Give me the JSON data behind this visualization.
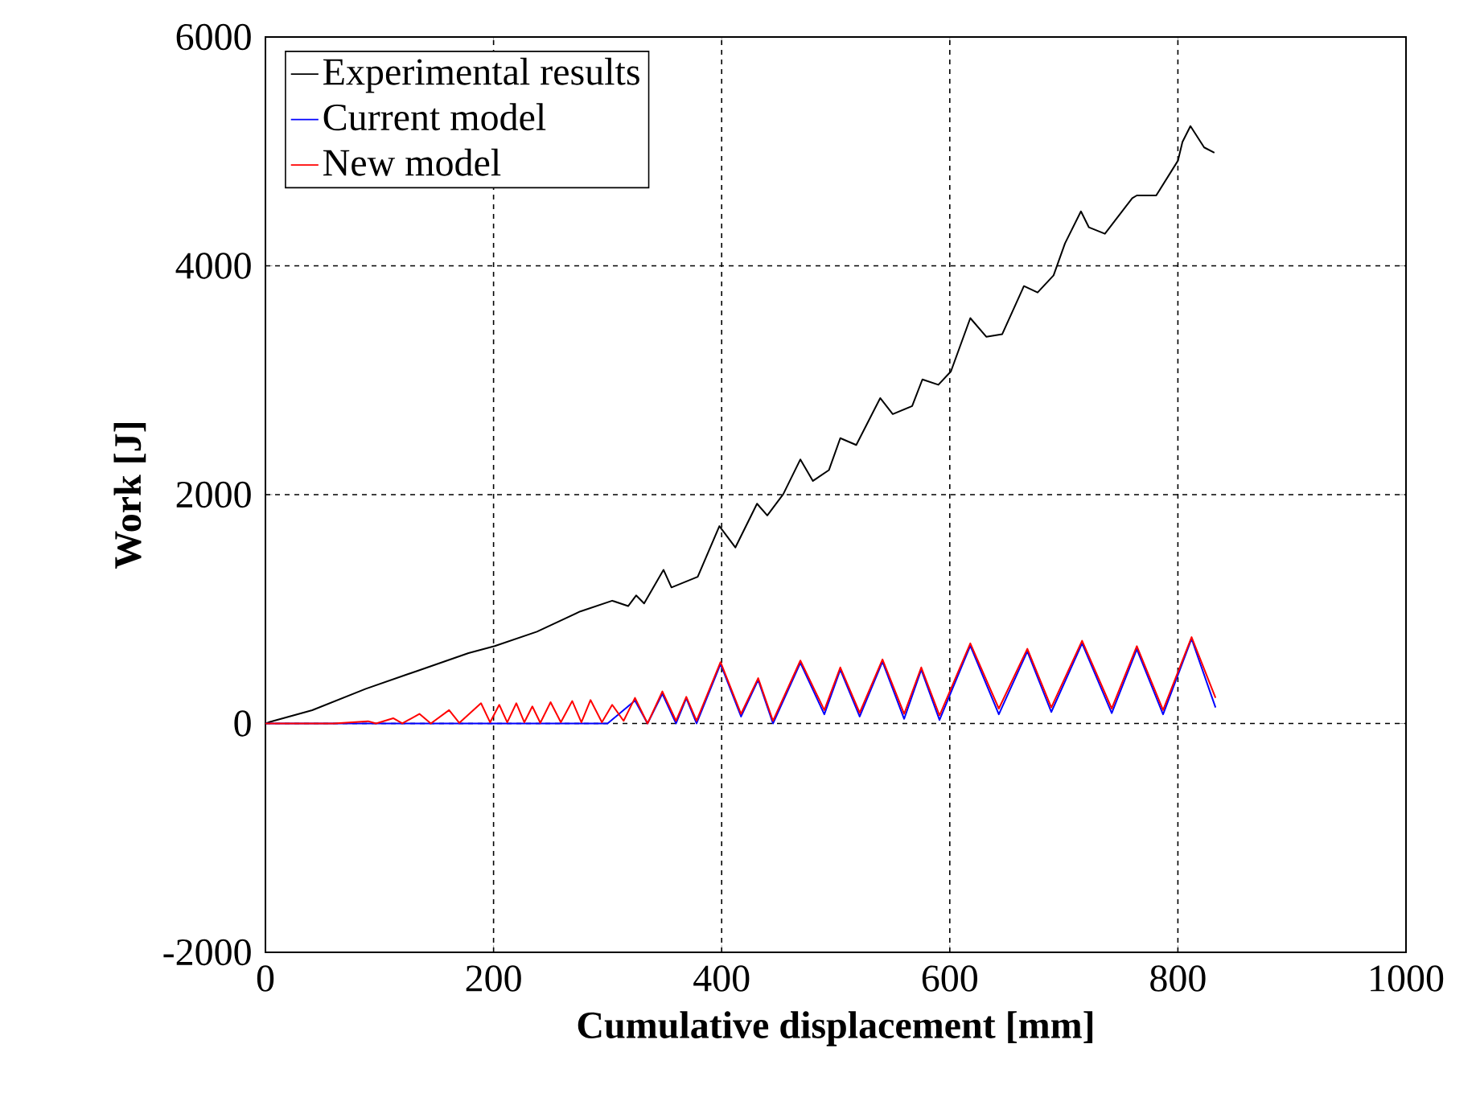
{
  "chart_data": {
    "type": "line",
    "xlabel": "Cumulative displacement [mm]",
    "ylabel": "Work [J]",
    "xlim": [
      0,
      1000
    ],
    "xticks": [
      0,
      200,
      400,
      600,
      800,
      1000
    ],
    "ylim": [
      -2000,
      6000
    ],
    "yticks": [
      -2000,
      0,
      2000,
      4000,
      6000
    ],
    "grid": true,
    "legend": "top left",
    "marker": "none",
    "line_style": "solid",
    "series": [
      {
        "name": "Experimental results",
        "color": "#000000",
        "x": [
          0,
          4,
          41,
          88,
          135,
          178,
          201,
          238,
          276,
          304,
          318,
          325,
          332,
          349,
          356,
          379,
          398,
          412,
          431,
          440,
          454,
          469,
          480,
          494,
          504,
          518,
          539,
          550,
          567,
          576,
          590,
          601,
          618,
          632,
          646,
          665,
          677,
          691,
          701,
          715,
          722,
          736,
          760,
          764,
          781,
          800,
          804,
          811,
          823,
          832
        ],
        "values": [
          0,
          14,
          116,
          303,
          466,
          615,
          676,
          802,
          979,
          1073,
          1026,
          1119,
          1049,
          1343,
          1189,
          1282,
          1725,
          1538,
          1921,
          1818,
          2004,
          2308,
          2120,
          2214,
          2494,
          2434,
          2844,
          2704,
          2774,
          3007,
          2960,
          3077,
          3543,
          3380,
          3403,
          3823,
          3767,
          3916,
          4196,
          4476,
          4336,
          4280,
          4592,
          4615,
          4615,
          4918,
          5082,
          5221,
          5035,
          4988
        ]
      },
      {
        "name": "Current model",
        "color": "#0000ff",
        "x": [
          0,
          300,
          324,
          335,
          348,
          360,
          369,
          378,
          399,
          417,
          432,
          445,
          469,
          490,
          504,
          521,
          541,
          560,
          575,
          591,
          618,
          643,
          668,
          689,
          716,
          742,
          764,
          787,
          812,
          833
        ],
        "values": [
          0,
          0,
          200,
          0,
          260,
          0,
          220,
          0,
          520,
          60,
          380,
          0,
          530,
          80,
          470,
          60,
          540,
          40,
          470,
          30,
          680,
          80,
          630,
          100,
          700,
          90,
          650,
          80,
          740,
          140
        ]
      },
      {
        "name": "New model",
        "color": "#ff0000",
        "x": [
          0,
          60,
          90,
          97,
          112,
          120,
          135,
          145,
          161,
          170,
          189,
          197,
          205,
          212,
          220,
          227,
          234,
          241,
          250,
          259,
          269,
          277,
          285,
          295,
          304,
          314,
          324,
          335,
          348,
          360,
          369,
          378,
          399,
          417,
          432,
          445,
          469,
          490,
          504,
          521,
          541,
          560,
          575,
          591,
          618,
          643,
          668,
          689,
          716,
          742,
          764,
          787,
          812,
          833
        ],
        "values": [
          0,
          0,
          20,
          0,
          46,
          0,
          84,
          0,
          117,
          5,
          177,
          10,
          163,
          10,
          177,
          10,
          149,
          5,
          186,
          10,
          196,
          10,
          205,
          10,
          163,
          23,
          224,
          0,
          280,
          23,
          233,
          23,
          536,
          84,
          396,
          23,
          550,
          117,
          490,
          93,
          560,
          84,
          490,
          70,
          700,
          130,
          653,
          140,
          723,
          130,
          676,
          117,
          755,
          224
        ]
      }
    ]
  }
}
